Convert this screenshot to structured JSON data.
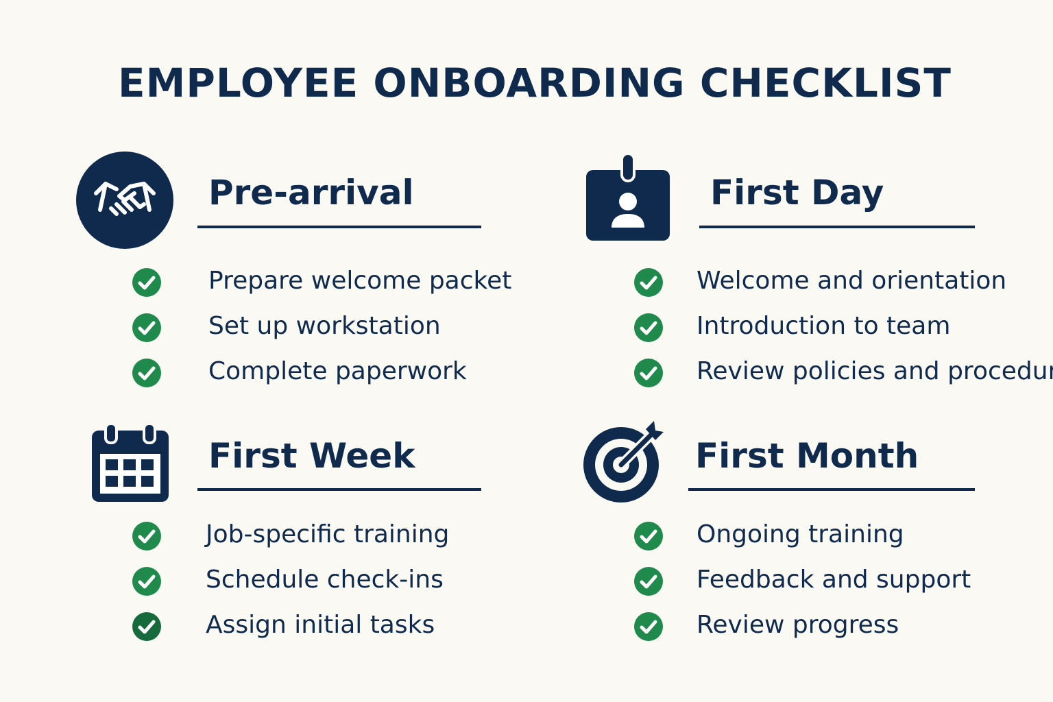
{
  "title": "EMPLOYEE ONBOARDING CHECKLIST",
  "colors": {
    "navy": "#0f2a4d",
    "check_green": "#1f8a4c",
    "background": "#faf9f4"
  },
  "sections": [
    {
      "heading": "Pre-arrival",
      "icon": "handshake-icon",
      "items": [
        "Prepare welcome packet",
        "Set up workstation",
        "Complete paperwork"
      ]
    },
    {
      "heading": "First Day",
      "icon": "id-badge-icon",
      "items": [
        "Welcome and orientation",
        "Introduction to team",
        "Review policies and procedures"
      ]
    },
    {
      "heading": "First Week",
      "icon": "calendar-icon",
      "items": [
        "Job-specific training",
        "Schedule check-ins",
        "Assign initial tasks"
      ]
    },
    {
      "heading": "First Month",
      "icon": "target-icon",
      "items": [
        "Ongoing training",
        "Feedback and support",
        "Review progress"
      ]
    }
  ]
}
